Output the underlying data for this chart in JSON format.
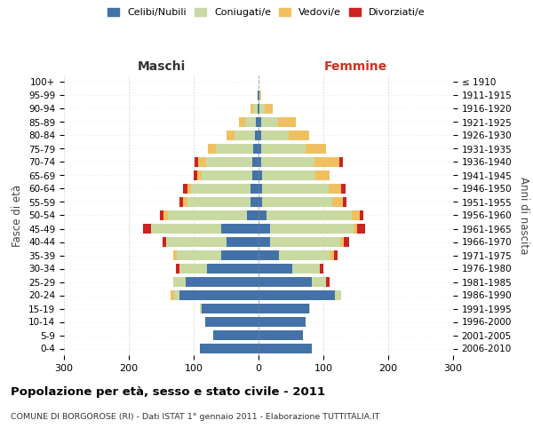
{
  "age_groups": [
    "0-4",
    "5-9",
    "10-14",
    "15-19",
    "20-24",
    "25-29",
    "30-34",
    "35-39",
    "40-44",
    "45-49",
    "50-54",
    "55-59",
    "60-64",
    "65-69",
    "70-74",
    "75-79",
    "80-84",
    "85-89",
    "90-94",
    "95-99",
    "100+"
  ],
  "birth_years": [
    "2006-2010",
    "2001-2005",
    "1996-2000",
    "1991-1995",
    "1986-1990",
    "1981-1985",
    "1976-1980",
    "1971-1975",
    "1966-1970",
    "1961-1965",
    "1956-1960",
    "1951-1955",
    "1946-1950",
    "1941-1945",
    "1936-1940",
    "1931-1935",
    "1926-1930",
    "1921-1925",
    "1916-1920",
    "1911-1915",
    "≤ 1910"
  ],
  "males_celibi": [
    90,
    70,
    82,
    88,
    122,
    112,
    80,
    58,
    50,
    58,
    18,
    12,
    12,
    10,
    9,
    8,
    5,
    4,
    2,
    1,
    0
  ],
  "males_coniugati": [
    0,
    0,
    0,
    2,
    8,
    20,
    42,
    68,
    92,
    108,
    122,
    98,
    92,
    78,
    72,
    58,
    32,
    16,
    6,
    1,
    0
  ],
  "males_vedovi": [
    0,
    0,
    0,
    0,
    5,
    0,
    0,
    6,
    0,
    0,
    6,
    6,
    6,
    6,
    12,
    12,
    12,
    10,
    5,
    0,
    0
  ],
  "males_divorziati": [
    0,
    0,
    0,
    0,
    0,
    0,
    6,
    0,
    6,
    12,
    6,
    6,
    6,
    6,
    6,
    0,
    0,
    0,
    0,
    0,
    0
  ],
  "females_nubili": [
    82,
    68,
    72,
    78,
    118,
    82,
    52,
    32,
    18,
    18,
    12,
    6,
    6,
    6,
    4,
    4,
    4,
    4,
    2,
    1,
    0
  ],
  "females_coniugate": [
    0,
    0,
    0,
    2,
    10,
    22,
    42,
    78,
    108,
    128,
    132,
    108,
    102,
    82,
    82,
    68,
    42,
    26,
    8,
    2,
    0
  ],
  "females_vedove": [
    0,
    0,
    0,
    0,
    0,
    0,
    0,
    6,
    6,
    6,
    12,
    16,
    20,
    22,
    38,
    32,
    32,
    28,
    12,
    1,
    0
  ],
  "females_divorziate": [
    0,
    0,
    0,
    0,
    0,
    6,
    6,
    6,
    8,
    12,
    6,
    6,
    6,
    0,
    6,
    0,
    0,
    0,
    0,
    0,
    0
  ],
  "color_celibi": "#4472a8",
  "color_coniugati": "#c8d9a2",
  "color_vedovi": "#f0c060",
  "color_divorziati": "#cc2222",
  "legend_labels": [
    "Celibi/Nubili",
    "Coniugati/e",
    "Vedovi/e",
    "Divorziati/e"
  ],
  "title": "Popolazione per età, sesso e stato civile - 2011",
  "subtitle": "COMUNE DI BORGOROSE (RI) - Dati ISTAT 1° gennaio 2011 - Elaborazione TUTTITALIA.IT",
  "label_maschi": "Maschi",
  "label_femmine": "Femmine",
  "label_fasce": "Fasce di età",
  "label_anni": "Anni di nascita",
  "xlim": 300,
  "bg_color": "#ffffff",
  "grid_color": "#cccccc"
}
